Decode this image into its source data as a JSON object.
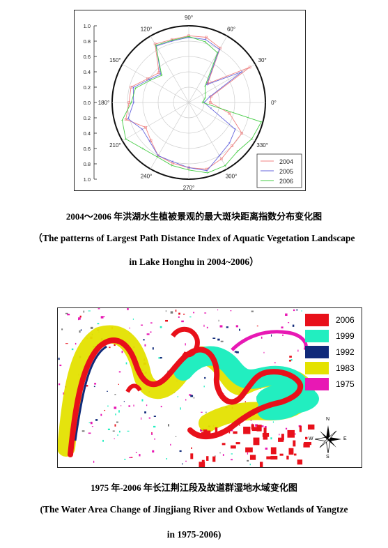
{
  "figure1": {
    "chart_data": {
      "type": "polar-line",
      "angle_ticks": [
        "0°",
        "30°",
        "60°",
        "90°",
        "120°",
        "150°",
        "180°",
        "210°",
        "240°",
        "270°",
        "300°",
        "330°"
      ],
      "radial_ticks_upper": [
        "1.0",
        "0.8",
        "0.6",
        "0.4",
        "0.2",
        "0.0"
      ],
      "radial_ticks_lower": [
        "0.2",
        "0.4",
        "0.6",
        "0.8",
        "1.0"
      ],
      "rlim": [
        0,
        1
      ],
      "legend_position": "bottom-right",
      "angles_deg": [
        0,
        15,
        30,
        45,
        60,
        75,
        90,
        105,
        120,
        135,
        150,
        165,
        180,
        195,
        210,
        225,
        240,
        255,
        270,
        285,
        300,
        315,
        330,
        345
      ],
      "series": [
        {
          "name": "2004",
          "color": "#f08080",
          "values": [
            0.28,
            0.3,
            0.92,
            0.35,
            0.82,
            0.88,
            0.87,
            0.85,
            0.88,
            0.55,
            0.62,
            0.78,
            0.78,
            0.85,
            0.65,
            0.7,
            0.8,
            0.82,
            0.85,
            0.9,
            0.85,
            0.8,
            0.8,
            0.55
          ]
        },
        {
          "name": "2005",
          "color": "#6666dd",
          "values": [
            0.2,
            0.28,
            0.8,
            0.33,
            0.8,
            0.85,
            0.85,
            0.83,
            0.85,
            0.52,
            0.6,
            0.75,
            0.72,
            0.82,
            0.7,
            0.72,
            0.8,
            0.8,
            0.85,
            0.92,
            0.8,
            0.75,
            0.7,
            0.3
          ]
        },
        {
          "name": "2006",
          "color": "#44cc44",
          "values": [
            0.18,
            0.22,
            0.25,
            0.3,
            0.75,
            0.82,
            0.86,
            0.84,
            0.86,
            0.5,
            0.58,
            0.72,
            0.75,
            0.9,
            0.95,
            0.85,
            0.82,
            0.85,
            0.88,
            0.95,
            0.95,
            0.9,
            0.95,
            0.98
          ]
        }
      ]
    },
    "caption_cn": "2004～2006 年洪湖水生植被景观的最大斑块距离指数分布变化图",
    "caption_en_line1": "（The patterns of Largest Path Distance Index of Aquatic Vegetation Landscape",
    "caption_en_line2": "in Lake Honghu in 2004~2006）"
  },
  "figure2": {
    "legend": [
      {
        "label": "2006",
        "color": "#e8101a"
      },
      {
        "label": "1999",
        "color": "#22eec0"
      },
      {
        "label": "1992",
        "color": "#102a7a"
      },
      {
        "label": "1983",
        "color": "#e4e200"
      },
      {
        "label": "1975",
        "color": "#e818b4"
      }
    ],
    "compass": {
      "n": "N",
      "s": "S",
      "e": "E",
      "w": "W"
    },
    "caption_cn": "1975 年-2006 年长江荆江段及故道群湿地水域变化图",
    "caption_en_line1": "(The Water Area Change of Jingjiang River and Oxbow Wetlands of Yangtze",
    "caption_en_line2": "in 1975-2006)"
  }
}
